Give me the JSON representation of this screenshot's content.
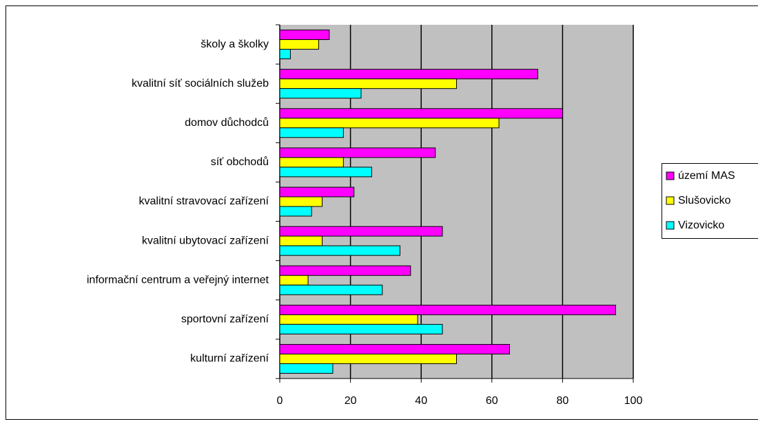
{
  "chart_data": {
    "type": "bar",
    "orientation": "horizontal",
    "categories": [
      "školy a školky",
      "kvalitní síť sociálních služeb",
      "domov důchodců",
      "síť obchodů",
      "kvalitní stravovací zařízení",
      "kvalitní ubytovací zařízení",
      "informační centrum a veřejný internet",
      "sportovní zařízení",
      "kulturní zařízení"
    ],
    "series": [
      {
        "name": "území MAS",
        "color": "#ff00ff",
        "values": [
          14,
          73,
          80,
          44,
          21,
          46,
          37,
          95,
          65
        ]
      },
      {
        "name": "Slušovicko",
        "color": "#ffff00",
        "values": [
          11,
          50,
          62,
          18,
          12,
          12,
          8,
          39,
          50
        ]
      },
      {
        "name": "Vizovicko",
        "color": "#00ffff",
        "values": [
          3,
          23,
          18,
          26,
          9,
          34,
          29,
          46,
          15
        ]
      }
    ],
    "xlim": [
      0,
      100
    ],
    "xticks": [
      0,
      20,
      40,
      60,
      80,
      100
    ],
    "grid": true,
    "legend": "right"
  }
}
